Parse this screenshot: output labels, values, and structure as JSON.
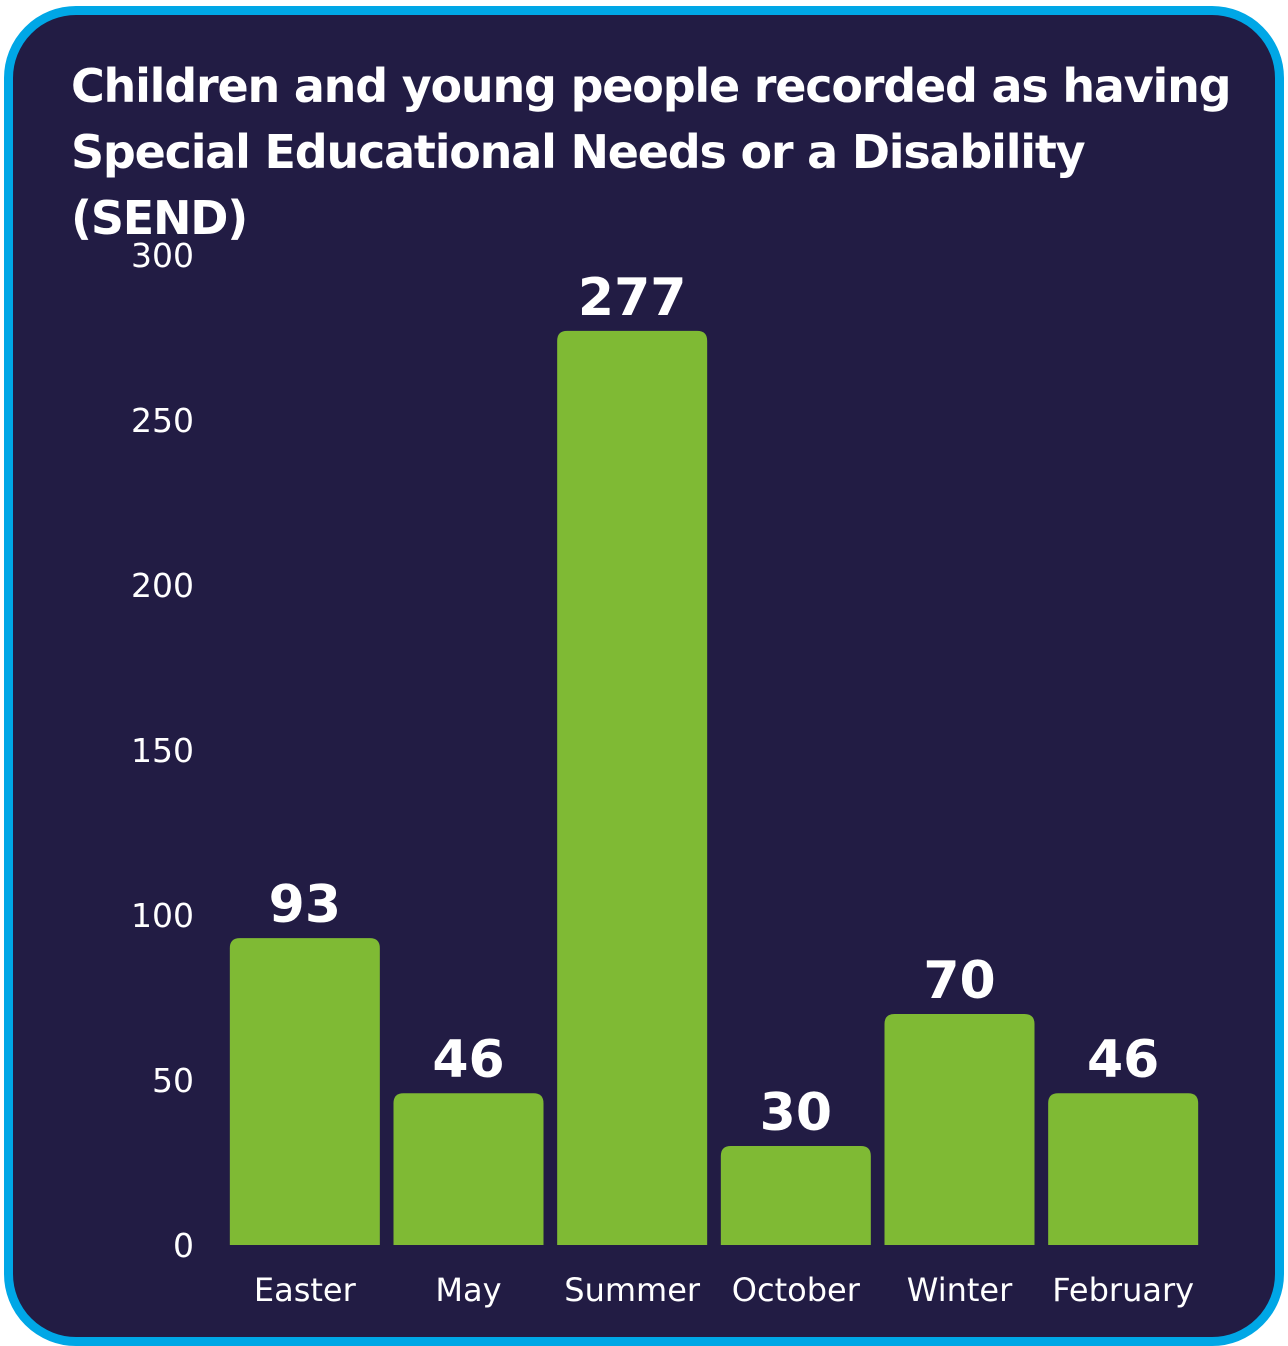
{
  "chart_data": {
    "type": "bar",
    "title": "Children and young people recorded as having Special Educational Needs or a Disability (SEND)",
    "categories": [
      "Easter",
      "May",
      "Summer",
      "October",
      "Winter",
      "February"
    ],
    "values": [
      93,
      46,
      277,
      30,
      70,
      46
    ],
    "ylim": [
      0,
      300
    ],
    "yticks": [
      0,
      50,
      100,
      150,
      200,
      250,
      300
    ],
    "xlabel": "",
    "ylabel": "",
    "grid": false,
    "data_labels": true,
    "colors": {
      "bar": "#7fba34",
      "background": "#221c44",
      "border": "#00a7e6",
      "text": "#ffffff"
    }
  }
}
